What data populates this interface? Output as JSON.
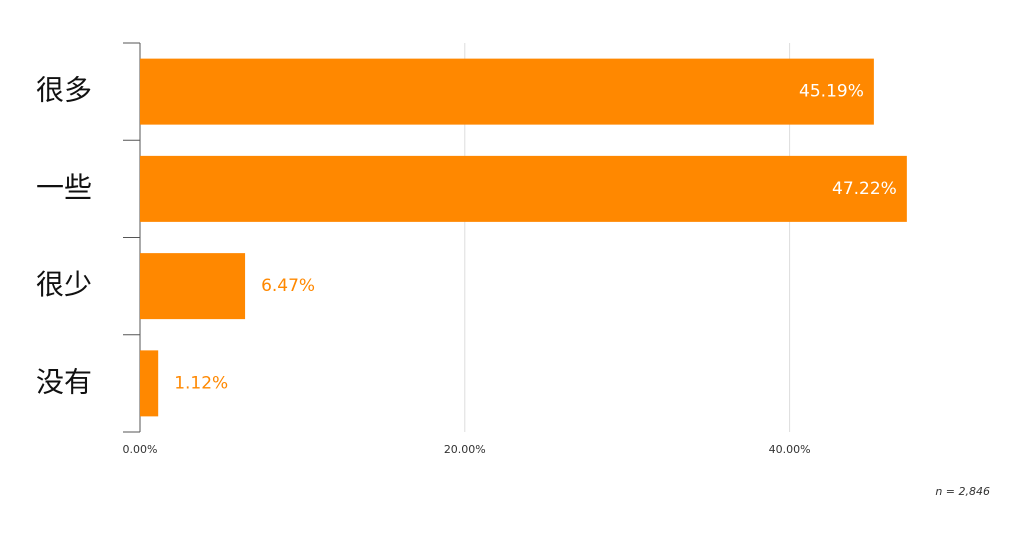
{
  "chart_data": {
    "type": "bar",
    "orientation": "horizontal",
    "categories": [
      "很多",
      "一些",
      "很少",
      "没有"
    ],
    "values": [
      45.19,
      47.22,
      6.47,
      1.12
    ],
    "value_labels": [
      "45.19%",
      "47.22%",
      "6.47%",
      "1.12%"
    ],
    "color": "#ff8800",
    "xlim": [
      0,
      50
    ],
    "xticks": [
      {
        "value": 0,
        "label": "0.00%"
      },
      {
        "value": 20,
        "label": "20.00%"
      },
      {
        "value": 40,
        "label": "40.00%"
      }
    ],
    "grid": true,
    "note": "n = 2,846"
  }
}
